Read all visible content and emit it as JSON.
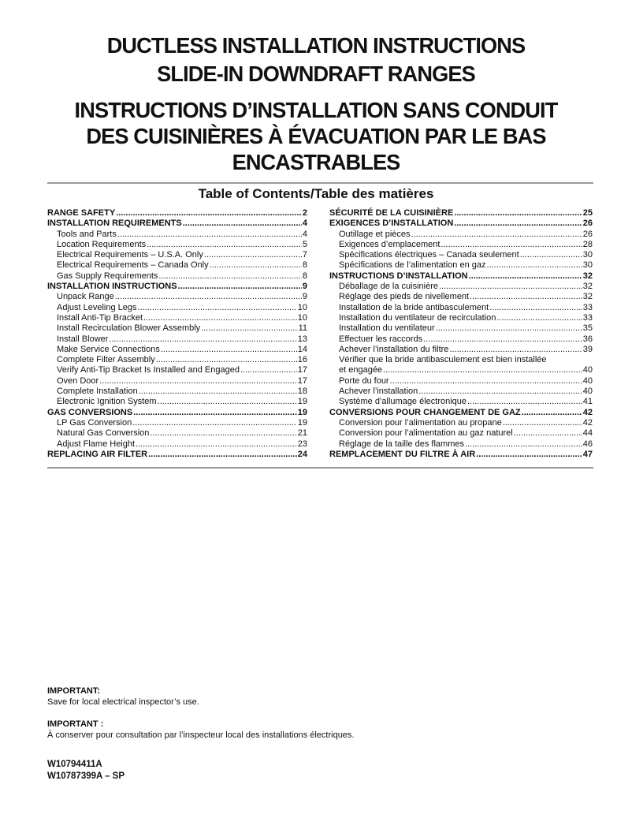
{
  "title": {
    "en1": "DUCTLESS INSTALLATION INSTRUCTIONS",
    "en2": "SLIDE-IN DOWNDRAFT RANGES",
    "fr1": "INSTRUCTIONS D’INSTALLATION SANS CONDUIT",
    "fr2": "DES CUISINIÈRES À ÉVACUATION PAR LE BAS",
    "fr3": "ENCASTRABLES"
  },
  "toc_heading": "Table of Contents/Table des matières",
  "toc_left": [
    {
      "level": "main",
      "text": "RANGE SAFETY",
      "page": "2"
    },
    {
      "level": "main",
      "text": "INSTALLATION REQUIREMENTS",
      "page": "4"
    },
    {
      "level": "sub",
      "text": "Tools and Parts",
      "page": "4"
    },
    {
      "level": "sub",
      "text": "Location Requirements",
      "page": "5"
    },
    {
      "level": "sub",
      "text": "Electrical Requirements – U.S.A. Only",
      "page": "7"
    },
    {
      "level": "sub",
      "text": "Electrical Requirements – Canada Only",
      "page": "8"
    },
    {
      "level": "sub",
      "text": "Gas Supply Requirements",
      "page": "8"
    },
    {
      "level": "main",
      "text": "INSTALLATION INSTRUCTIONS",
      "page": "9"
    },
    {
      "level": "sub",
      "text": "Unpack Range",
      "page": "9"
    },
    {
      "level": "sub",
      "text": "Adjust Leveling Legs",
      "page": "10"
    },
    {
      "level": "sub",
      "text": "Install Anti-Tip Bracket",
      "page": "10"
    },
    {
      "level": "sub",
      "text": "Install Recirculation Blower Assembly",
      "page": "11"
    },
    {
      "level": "sub",
      "text": "Install Blower",
      "page": "13"
    },
    {
      "level": "sub",
      "text": "Make Service Connections",
      "page": "14"
    },
    {
      "level": "sub",
      "text": "Complete Filter Assembly",
      "page": "16"
    },
    {
      "level": "sub",
      "text": "Verify Anti-Tip Bracket Is Installed and Engaged",
      "page": "17"
    },
    {
      "level": "sub",
      "text": "Oven Door",
      "page": "17"
    },
    {
      "level": "sub",
      "text": "Complete Installation",
      "page": "18"
    },
    {
      "level": "sub",
      "text": "Electronic Ignition System",
      "page": "19"
    },
    {
      "level": "main",
      "text": "GAS CONVERSIONS",
      "page": "19"
    },
    {
      "level": "sub",
      "text": "LP Gas Conversion",
      "page": "19"
    },
    {
      "level": "sub",
      "text": "Natural Gas Conversion",
      "page": "21"
    },
    {
      "level": "sub",
      "text": "Adjust Flame Height",
      "page": "23"
    },
    {
      "level": "main",
      "text": "REPLACING AIR FILTER",
      "page": "24"
    }
  ],
  "toc_right": [
    {
      "level": "main",
      "text": "SÉCURITÉ DE LA CUISINIÈRE",
      "page": "25"
    },
    {
      "level": "main",
      "text": "EXIGENCES D’INSTALLATION",
      "page": "26"
    },
    {
      "level": "sub",
      "text": "Outillage et pièces",
      "page": "26"
    },
    {
      "level": "sub",
      "text": "Exigences d’emplacement",
      "page": "28"
    },
    {
      "level": "sub",
      "text": "Spécifications électriques – Canada seulement",
      "page": "30"
    },
    {
      "level": "sub",
      "text": "Spécifications de l’alimentation en gaz",
      "page": "30"
    },
    {
      "level": "main",
      "text": "INSTRUCTIONS D’INSTALLATION",
      "page": "32"
    },
    {
      "level": "sub",
      "text": "Déballage de la cuisinière",
      "page": "32"
    },
    {
      "level": "sub",
      "text": "Réglage des pieds de nivellement",
      "page": "32"
    },
    {
      "level": "sub",
      "text": "Installation de la bride antibasculement",
      "page": "33"
    },
    {
      "level": "sub",
      "text": "Installation du ventilateur de recirculation",
      "page": "33"
    },
    {
      "level": "sub",
      "text": "Installation du ventilateur",
      "page": "35"
    },
    {
      "level": "sub",
      "text": "Effectuer les raccords",
      "page": "36"
    },
    {
      "level": "sub",
      "text": "Achever l’installation du filtre",
      "page": "39"
    },
    {
      "level": "sub",
      "text": "Vérifier que la bride antibasculement est bien installée",
      "text2": "et engagée",
      "page": "40"
    },
    {
      "level": "sub",
      "text": "Porte du four",
      "page": "40"
    },
    {
      "level": "sub",
      "text": "Achever l’installation",
      "page": "40"
    },
    {
      "level": "sub",
      "text": "Système d’allumage électronique",
      "page": "41"
    },
    {
      "level": "main",
      "text": "CONVERSIONS POUR CHANGEMENT DE GAZ",
      "page": "42"
    },
    {
      "level": "sub",
      "text": "Conversion pour l’alimentation au propane",
      "page": "42"
    },
    {
      "level": "sub",
      "text": "Conversion pour l’alimentation au gaz naturel",
      "page": "44"
    },
    {
      "level": "sub",
      "text": "Réglage de la taille des flammes",
      "page": "46"
    },
    {
      "level": "main",
      "text": "REMPLACEMENT DU FILTRE À AIR",
      "page": "47"
    }
  ],
  "footer": {
    "important_en_label": "IMPORTANT:",
    "important_en_text": "Save for local electrical inspector’s use.",
    "important_fr_label": "IMPORTANT :",
    "important_fr_text": "À conserver pour consultation par l’inspecteur local des installations électriques.",
    "part1": "W10794411A",
    "part2": "W10787399A – SP"
  }
}
